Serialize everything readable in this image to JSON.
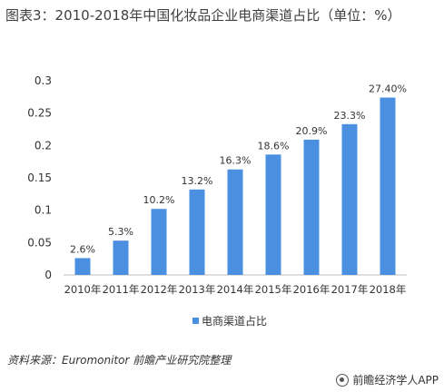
{
  "header": {
    "title": "图表3：2010-2018年中国化妆品企业电商渠道占比（单位：%）"
  },
  "footer": {
    "source": "资料来源：Euromonitor 前瞻产业研究院整理",
    "brand": "前瞻经济学人APP"
  },
  "colors": {
    "bar": "#4a8fe0",
    "axis": "#bfbfbf",
    "text": "#333333"
  },
  "chart_data": {
    "type": "bar",
    "categories": [
      "2010年",
      "2011年",
      "2012年",
      "2013年",
      "2014年",
      "2015年",
      "2016年",
      "2017年",
      "2018年"
    ],
    "series": [
      {
        "name": "电商渠道占比",
        "values": [
          0.026,
          0.053,
          0.102,
          0.132,
          0.163,
          0.186,
          0.209,
          0.233,
          0.274
        ],
        "labels": [
          "2.6%",
          "5.3%",
          "10.2%",
          "13.2%",
          "16.3%",
          "18.6%",
          "20.9%",
          "23.3%",
          "27.40%"
        ]
      }
    ],
    "yticks": [
      "0",
      "0.05",
      "0.1",
      "0.15",
      "0.2",
      "0.25",
      "0.3"
    ],
    "ylim": [
      0,
      0.3
    ],
    "grid": false,
    "legend_position": "bottom"
  }
}
